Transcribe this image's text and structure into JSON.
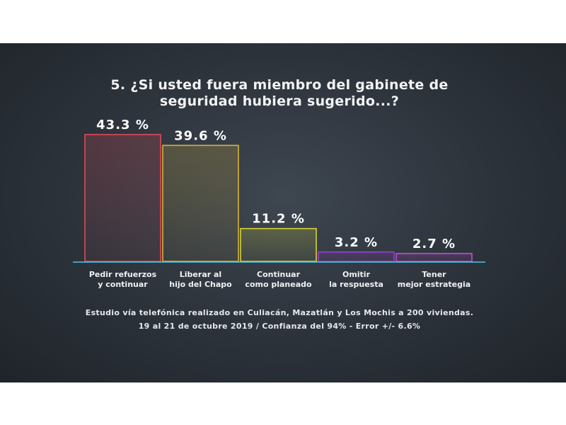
{
  "chart_data": {
    "type": "bar",
    "title_lines": [
      "5. ¿Si usted fuera miembro del gabinete de",
      "seguridad hubiera sugerido...?"
    ],
    "categories": [
      [
        "Pedir refuerzos",
        "y continuar"
      ],
      [
        "Liberar al",
        "hijo del Chapo"
      ],
      [
        "Continuar",
        "como planeado"
      ],
      [
        "Omitir",
        "la respuesta"
      ],
      [
        "Tener",
        "mejor estrategia"
      ]
    ],
    "values": [
      43.3,
      39.6,
      11.2,
      3.2,
      2.7
    ],
    "value_labels": [
      "43.3 %",
      "39.6 %",
      "11.2 %",
      "3.2 %",
      "2.7 %"
    ],
    "colors": [
      "#e04a55",
      "#d8b23a",
      "#d6d43a",
      "#9a3fd0",
      "#c04bd6"
    ],
    "ylim": [
      0,
      43.3
    ],
    "grid": false,
    "legend": "none"
  },
  "footer": {
    "line1": "Estudio vía telefónica realizado en Culiacán, Mazatlán y Los Mochis a 200 viviendas.",
    "line2": "19 al 21 de octubre 2019  /  Confianza del 94%  -  Error +/- 6.6%"
  },
  "axis_color": "#4fc3e8"
}
